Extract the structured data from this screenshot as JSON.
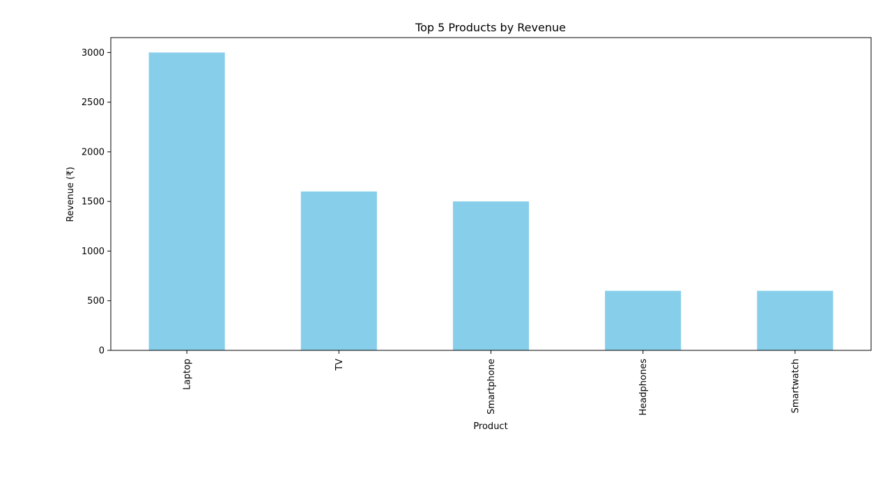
{
  "chart_data": {
    "type": "bar",
    "title": "Top 5 Products by Revenue",
    "xlabel": "Product",
    "ylabel": "Revenue (₹)",
    "categories": [
      "Laptop",
      "TV",
      "Smartphone",
      "Headphones",
      "Smartwatch"
    ],
    "values": [
      3000,
      1600,
      1500,
      600,
      600
    ],
    "ylim": [
      0,
      3150
    ],
    "yticks": [
      0,
      500,
      1000,
      1500,
      2000,
      2500,
      3000
    ],
    "bar_color": "#87CEEB",
    "grid": false,
    "legend": false
  }
}
